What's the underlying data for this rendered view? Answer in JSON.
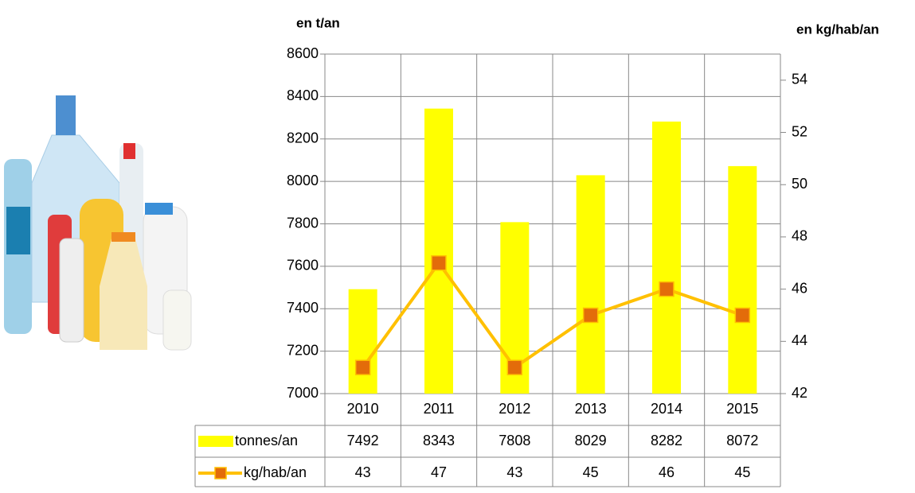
{
  "chart_data": {
    "type": "bar",
    "y_label": "en t/an",
    "y2_label": "en kg/hab/an",
    "categories": [
      "2010",
      "2011",
      "2012",
      "2013",
      "2014",
      "2015"
    ],
    "series": [
      {
        "name": "tonnes/an",
        "color": "#ffff00",
        "values": [
          7492,
          8343,
          7808,
          8029,
          8282,
          8072
        ]
      },
      {
        "name": "kg/hab/an",
        "color": "#ffc000",
        "marker_color": "#e36c0a",
        "axis": "y2",
        "values": [
          43,
          47,
          43,
          45,
          46,
          45
        ]
      }
    ],
    "ylim": [
      7000,
      8600
    ],
    "yticks": [
      7000,
      7200,
      7400,
      7600,
      7800,
      8000,
      8200,
      8400,
      8600
    ],
    "y2lim": [
      42,
      55
    ],
    "y2ticks": [
      42,
      44,
      46,
      48,
      50,
      52,
      54
    ],
    "grid": true
  }
}
